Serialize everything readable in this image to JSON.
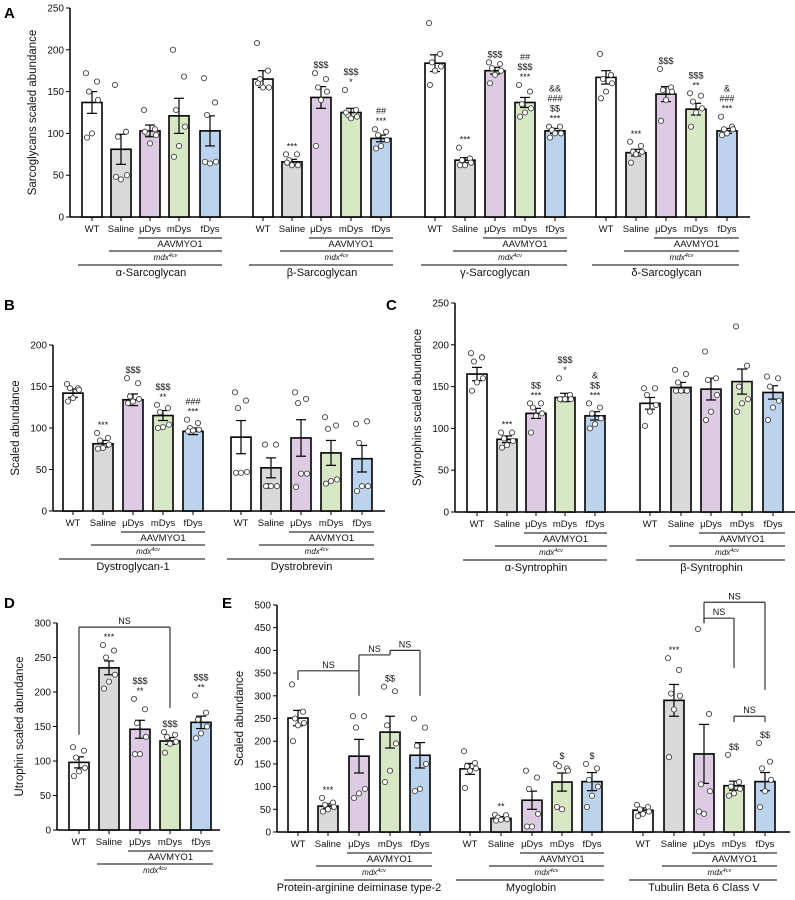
{
  "colors": {
    "WT": "#ffffff",
    "Saline": "#d9d9d9",
    "μDys": "#dccbe3",
    "mDys": "#d9e8c4",
    "fDys": "#bcd3ee"
  },
  "treatment_label": "AAVMYO1",
  "model_label": {
    "base": "mdx",
    "sup": "4cv"
  },
  "chart_data": [
    {
      "panel": "A",
      "type": "bar",
      "ylabel": "Sarcoglycans scaled abundance",
      "ylim": [
        0,
        250
      ],
      "ticks": [
        0,
        50,
        100,
        150,
        200,
        250
      ],
      "categories": [
        "WT",
        "Saline",
        "μDys",
        "mDys",
        "fDys"
      ],
      "groups": [
        {
          "name": "α-Sarcoglycan",
          "means": [
            137,
            81,
            103,
            121,
            103
          ],
          "sem": [
            13,
            18,
            7,
            21,
            18
          ],
          "points": [
            [
              172,
              162,
              150,
              140,
              100,
              95
            ],
            [
              158,
              102,
              96,
              50,
              45,
              48
            ],
            [
              128,
              105,
              100,
              98,
              88,
              102
            ],
            [
              200,
              168,
              128,
              108,
              85,
              72
            ],
            [
              166,
              137,
              122,
              66,
              64,
              66
            ]
          ],
          "annotations": [
            [],
            [],
            [],
            [],
            []
          ]
        },
        {
          "name": "β-Sarcoglycan",
          "means": [
            165,
            66,
            143,
            125,
            94
          ],
          "sem": [
            10,
            3,
            13,
            5,
            4
          ],
          "points": [
            [
              208,
              175,
              165,
              155,
              155,
              160
            ],
            [
              75,
              75,
              68,
              62,
              62,
              65
            ],
            [
              172,
              165,
              155,
              150,
              140,
              85
            ],
            [
              152,
              128,
              122,
              120,
              118,
              125
            ],
            [
              105,
              102,
              98,
              92,
              85,
              82
            ]
          ],
          "annotations": [
            [],
            [
              "***"
            ],
            [
              "$$$"
            ],
            [
              "$$$",
              "*"
            ],
            [
              "##",
              "***"
            ]
          ]
        },
        {
          "name": "γ-Sarcoglycan",
          "means": [
            184,
            68,
            175,
            137,
            103
          ],
          "sem": [
            10,
            3,
            4,
            6,
            3
          ],
          "points": [
            [
              232,
              195,
              185,
              180,
              175,
              158
            ],
            [
              83,
              70,
              68,
              65,
              62,
              62
            ],
            [
              185,
              183,
              178,
              175,
              170,
              160
            ],
            [
              158,
              150,
              135,
              130,
              125,
              120
            ],
            [
              108,
              108,
              104,
              100,
              100,
              95
            ]
          ],
          "annotations": [
            [],
            [
              "***"
            ],
            [
              "$$$"
            ],
            [
              "##",
              "$$$",
              "***"
            ],
            [
              "&&",
              "###",
              "$$",
              "***"
            ]
          ]
        },
        {
          "name": "δ-Sarcoglycan",
          "means": [
            167,
            77,
            147,
            129,
            103
          ],
          "sem": [
            8,
            4,
            9,
            7,
            3
          ],
          "points": [
            [
              195,
              170,
              165,
              160,
              150,
              142
            ],
            [
              90,
              85,
              78,
              78,
              75,
              65
            ],
            [
              177,
              155,
              152,
              150,
              140,
              115
            ],
            [
              148,
              145,
              138,
              130,
              125,
              108
            ],
            [
              120,
              108,
              105,
              105,
              100,
              98
            ]
          ],
          "annotations": [
            [],
            [
              "***"
            ],
            [
              "$$$"
            ],
            [
              "$$$",
              "**"
            ],
            [
              "&",
              "###",
              "***"
            ]
          ]
        }
      ],
      "brackets": []
    },
    {
      "panel": "B",
      "type": "bar",
      "ylabel": "Scaled abundance",
      "ylim": [
        0,
        200
      ],
      "ticks": [
        0,
        50,
        100,
        150,
        200
      ],
      "categories": [
        "WT",
        "Saline",
        "μDys",
        "mDys",
        "fDys"
      ],
      "groups": [
        {
          "name": "Dystroglycan-1",
          "means": [
            142,
            81,
            134,
            115,
            96
          ],
          "sem": [
            5,
            4,
            7,
            6,
            4
          ],
          "points": [
            [
              153,
              148,
              148,
              146,
              136,
              132
            ],
            [
              94,
              88,
              85,
              80,
              76,
              75
            ],
            [
              160,
              154,
              138,
              135,
              132,
              130
            ],
            [
              128,
              124,
              119,
              104,
              101,
              100
            ],
            [
              110,
              106,
              100,
              98,
              97,
              96
            ]
          ],
          "annotations": [
            [],
            [
              "***"
            ],
            [
              "$$$"
            ],
            [
              "$$$",
              "**"
            ],
            [
              "###",
              "***"
            ]
          ]
        },
        {
          "name": "Dystrobrevin",
          "means": [
            89,
            52,
            88,
            70,
            63
          ],
          "sem": [
            20,
            12,
            22,
            15,
            16
          ],
          "points": [
            [
              143,
              133,
              124,
              47,
              46,
              46
            ],
            [
              80,
              80,
              30,
              30,
              30,
              30
            ],
            [
              143,
              135,
              130,
              45,
              45,
              29
            ],
            [
              113,
              103,
              99,
              38,
              36,
              33
            ],
            [
              105,
              108,
              82,
              30,
              30,
              24
            ]
          ],
          "annotations": [
            [],
            [],
            [],
            [],
            []
          ]
        }
      ],
      "brackets": []
    },
    {
      "panel": "C",
      "type": "bar",
      "ylabel": "Syntrophins scaled abundance",
      "ylim": [
        0,
        250
      ],
      "ticks": [
        0,
        50,
        100,
        150,
        200,
        250
      ],
      "categories": [
        "WT",
        "Saline",
        "μDys",
        "mDys",
        "fDys"
      ],
      "groups": [
        {
          "name": "α-Syntrophin",
          "means": [
            165,
            87,
            118,
            137,
            115
          ],
          "sem": [
            8,
            4,
            6,
            5,
            5
          ],
          "points": [
            [
              190,
              185,
              180,
              160,
              155,
              145
            ],
            [
              95,
              95,
              88,
              85,
              80,
              77
            ],
            [
              130,
              130,
              125,
              118,
              115,
              95
            ],
            [
              160,
              140,
              135,
              135,
              135,
              135
            ],
            [
              130,
              125,
              118,
              112,
              105,
              100
            ]
          ],
          "annotations": [
            [],
            [
              "***"
            ],
            [
              "$$",
              "***"
            ],
            [
              "$$$",
              "*"
            ],
            [
              "&",
              "$$",
              "***"
            ]
          ]
        },
        {
          "name": "β-Syntrophin",
          "means": [
            130,
            149,
            147,
            156,
            143
          ],
          "sem": [
            7,
            6,
            13,
            15,
            8
          ],
          "points": [
            [
              148,
              148,
              140,
              128,
              120,
              103
            ],
            [
              170,
              165,
              155,
              145,
              145,
              145
            ],
            [
              192,
              160,
              158,
              140,
              120,
              110
            ],
            [
              222,
              175,
              150,
              135,
              130,
              120
            ],
            [
              162,
              160,
              150,
              133,
              125,
              110
            ]
          ],
          "annotations": [
            [],
            [],
            [],
            [],
            []
          ]
        }
      ],
      "brackets": []
    },
    {
      "panel": "D",
      "type": "bar",
      "ylabel": "Utrophin scaled abundance",
      "ylim": [
        0,
        300
      ],
      "ticks": [
        0,
        50,
        100,
        150,
        200,
        250,
        300
      ],
      "categories": [
        "WT",
        "Saline",
        "μDys",
        "mDys",
        "fDys"
      ],
      "groups": [
        {
          "name": "",
          "means": [
            98,
            235,
            146,
            129,
            156
          ],
          "sem": [
            8,
            10,
            13,
            5,
            9
          ],
          "points": [
            [
              120,
              115,
              105,
              90,
              85,
              78
            ],
            [
              268,
              260,
              250,
              225,
              215,
              205
            ],
            [
              190,
              175,
              155,
              135,
              110,
              110
            ],
            [
              142,
              138,
              135,
              128,
              125,
              112
            ],
            [
              195,
              170,
              160,
              150,
              140,
              133
            ]
          ],
          "annotations": [
            [],
            [
              "***"
            ],
            [
              "$$$",
              "**"
            ],
            [
              "$$$"
            ],
            [
              "$$$",
              "**"
            ]
          ]
        }
      ],
      "brackets": [
        {
          "group": 0,
          "a": 0,
          "b": 3,
          "level": 294,
          "da": 138,
          "db": 177,
          "label": "NS"
        }
      ]
    },
    {
      "panel": "E",
      "type": "bar",
      "ylabel": "Scaled abundance",
      "ylim": [
        0,
        500
      ],
      "ticks": [
        0,
        50,
        100,
        150,
        200,
        250,
        300,
        350,
        400,
        450,
        500
      ],
      "categories": [
        "WT",
        "Saline",
        "μDys",
        "mDys",
        "fDys"
      ],
      "groups": [
        {
          "name": "Protein-arginine deiminase type-2",
          "means": [
            251,
            57,
            167,
            220,
            169
          ],
          "sem": [
            17,
            5,
            37,
            35,
            28
          ],
          "points": [
            [
              325,
              265,
              250,
              240,
              235,
              200
            ],
            [
              75,
              65,
              60,
              55,
              50,
              45
            ],
            [
              255,
              255,
              230,
              95,
              85,
              75
            ],
            [
              320,
              310,
              235,
              195,
              135,
              110
            ],
            [
              250,
              230,
              190,
              150,
              95,
              90
            ]
          ],
          "annotations": [
            [],
            [
              "***"
            ],
            [],
            [
              "$$"
            ],
            []
          ]
        },
        {
          "name": "Myoglobin",
          "means": [
            139,
            30,
            70,
            110,
            111
          ],
          "sem": [
            12,
            4,
            20,
            20,
            20
          ],
          "points": [
            [
              178,
              152,
              145,
              140,
              135,
              97
            ],
            [
              38,
              37,
              32,
              28,
              27,
              25
            ],
            [
              135,
              120,
              95,
              40,
              12,
              12
            ],
            [
              150,
              140,
              145,
              135,
              50,
              55
            ],
            [
              150,
              140,
              115,
              100,
              80,
              55
            ]
          ],
          "annotations": [
            [],
            [
              "**"
            ],
            [],
            [
              "$"
            ],
            [
              "$"
            ]
          ]
        },
        {
          "name": "Tubulin Beta 6 Class V",
          "means": [
            48,
            290,
            172,
            102,
            111
          ],
          "sem": [
            5,
            35,
            65,
            10,
            20
          ],
          "points": [
            [
              60,
              55,
              50,
              45,
              40,
              35
            ],
            [
              383,
              357,
              305,
              300,
              270,
              165
            ],
            [
              447,
              260,
              105,
              90,
              40,
              45
            ],
            [
              170,
              110,
              100,
              95,
              85,
              80
            ],
            [
              196,
              155,
              140,
              115,
              90,
              55
            ]
          ],
          "annotations": [
            [],
            [
              "***"
            ],
            [],
            [
              "$$"
            ],
            [
              "$$"
            ]
          ]
        }
      ],
      "brackets": [
        {
          "group": 0,
          "a": 0,
          "b": 2,
          "level": 355,
          "da": 335,
          "db": null,
          "label": "NS"
        },
        {
          "group": 0,
          "a": 2,
          "b": 3,
          "level": 390,
          "da": 300,
          "db": 400,
          "label": "NS"
        },
        {
          "group": 0,
          "a": 3,
          "b": 4,
          "level": 400,
          "da": null,
          "db": 300,
          "label": "NS"
        },
        {
          "group": 2,
          "a": 2,
          "b": 4,
          "level": 506,
          "da": 460,
          "db": 313,
          "label": "NS"
        },
        {
          "group": 2,
          "a": 2,
          "b": 3,
          "level": 471,
          "da": 460,
          "db": 361,
          "label": "NS"
        },
        {
          "group": 2,
          "a": 3,
          "b": 4,
          "level": 255,
          "da": 242,
          "db": 242,
          "label": "NS"
        }
      ]
    }
  ]
}
